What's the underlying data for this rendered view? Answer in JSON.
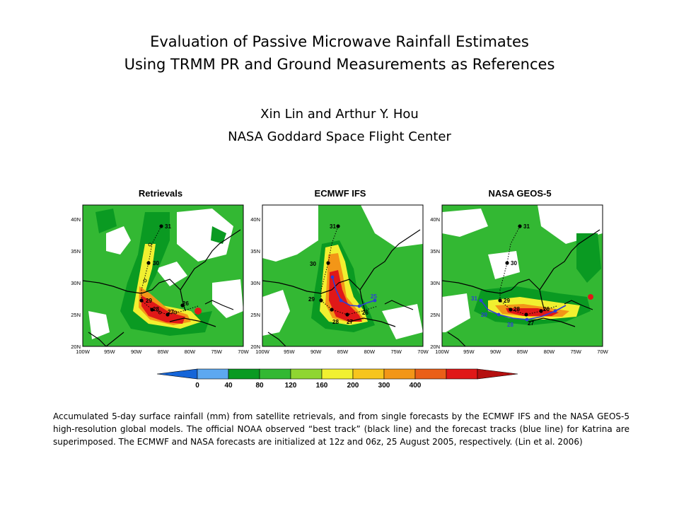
{
  "title": {
    "line1": "Evaluation of Passive Microwave Rainfall Estimates",
    "line2": "Using TRMM PR and Ground Measurements as References"
  },
  "authors": {
    "names": "Xin Lin and Arthur Y. Hou",
    "affiliation": "NASA Goddard Space Flight Center"
  },
  "panels": [
    {
      "name": "Retrievals"
    },
    {
      "name": "ECMWF IFS"
    },
    {
      "name": "NASA GEOS-5"
    }
  ],
  "axes": {
    "lat_labels": [
      "40N",
      "35N",
      "30N",
      "25N",
      "20N"
    ],
    "lon_labels": [
      "100W",
      "95W",
      "90W",
      "85W",
      "80W",
      "75W",
      "70W"
    ]
  },
  "colorbar": {
    "labels": [
      "0",
      "40",
      "80",
      "120",
      "160",
      "200",
      "300",
      "400"
    ],
    "colors": [
      "#1565d8",
      "#5da8f0",
      "#0a9a22",
      "#33b833",
      "#8fd631",
      "#f1f030",
      "#f7c51d",
      "#f39617",
      "#ea5f18",
      "#e01818",
      "#b51010"
    ]
  },
  "track_labels": {
    "retrievals_best": [
      "31",
      "30",
      "29",
      "28",
      "27",
      "26"
    ],
    "ecmwf_best": [
      "31",
      "30",
      "29",
      "28",
      "27",
      "26"
    ],
    "ecmwf_forecast": [
      "25"
    ],
    "geos_best": [
      "31",
      "30",
      "29",
      "28",
      "27",
      "26"
    ],
    "geos_forecast": [
      "31",
      "29",
      "28"
    ]
  },
  "caption": "Accumulated 5-day surface rainfall (mm) from satellite retrievals, and from single forecasts by the ECMWF IFS and the NASA GEOS-5 high-resolution global models. The official NOAA observed “best track” (black line) and the forecast tracks (blue line) for Katrina are superimposed. The ECMWF and NASA forecasts are initialized at 12z and 06z, 25 August 2005, respectively. (Lin et al. 2006)"
}
